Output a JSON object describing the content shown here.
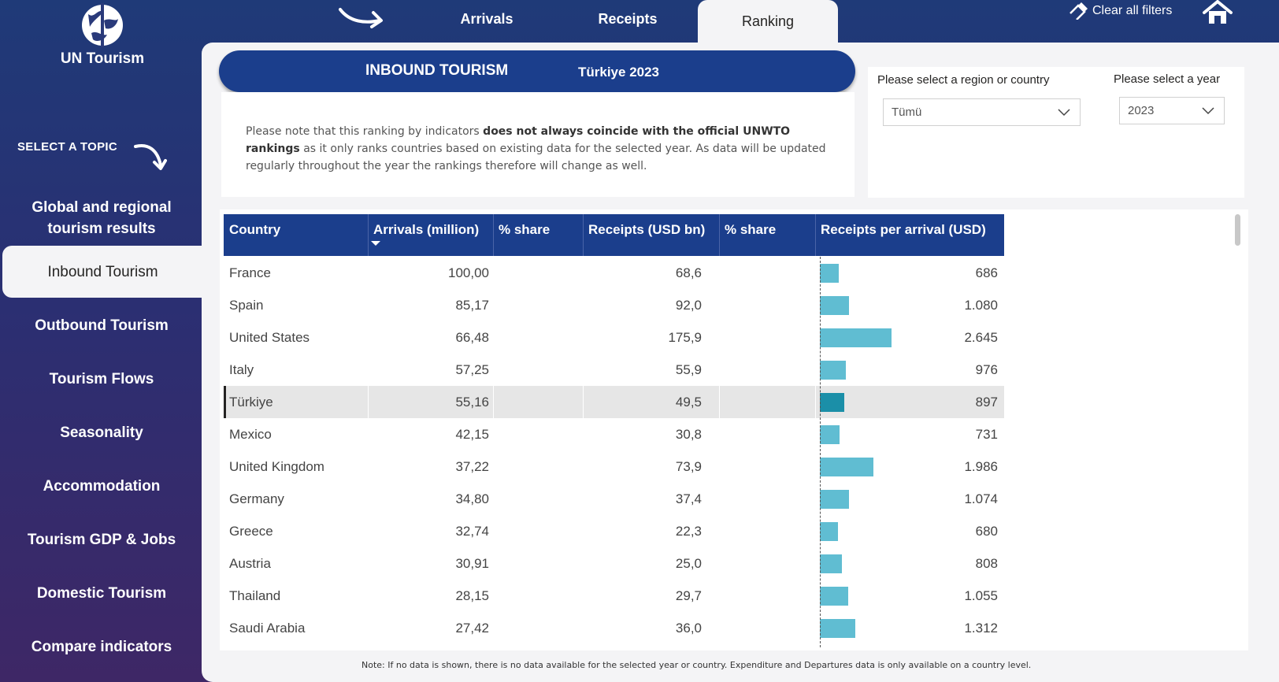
{
  "brand": {
    "name": "UN Tourism"
  },
  "nav": {
    "select_topic": "SELECT A TOPIC",
    "items": [
      {
        "label": "Global and regional tourism results",
        "line1": "Global and regional",
        "line2": "tourism results"
      },
      {
        "label": "Inbound Tourism"
      },
      {
        "label": "Outbound Tourism"
      },
      {
        "label": "Tourism Flows"
      },
      {
        "label": "Seasonality"
      },
      {
        "label": "Accommodation"
      },
      {
        "label": "Tourism GDP & Jobs"
      },
      {
        "label": "Domestic Tourism"
      },
      {
        "label": "Compare indicators"
      }
    ],
    "active": "Inbound Tourism"
  },
  "tabs": [
    {
      "label": "Arrivals"
    },
    {
      "label": "Receipts"
    },
    {
      "label": "Ranking"
    }
  ],
  "active_tab": "Ranking",
  "toolbar": {
    "clear_filters": "Clear all filters"
  },
  "banner": {
    "title": "INBOUND TOURISM",
    "context": "Türkiye 2023"
  },
  "note": {
    "part1": "Please note that this ranking by indicators ",
    "bold1": "does not always coincide with the official UNWTO rankings",
    "part2": " as it only ranks countries based on existing data for the selected year. As data will be updated regularly throughout the year the rankings therefore will change as well."
  },
  "filters": {
    "region_label": "Please select a region or country",
    "region_value": "Tümü",
    "year_label": "Please select a year",
    "year_value": "2023"
  },
  "table": {
    "columns": [
      "Country",
      "Arrivals (million)",
      "% share",
      "Receipts (USD bn)",
      "% share",
      "Receipts per arrival (USD)"
    ],
    "highlighted": "Türkiye",
    "rows": [
      {
        "country": "France",
        "arrivals": "100,00",
        "receipts": "68,6",
        "per_arrival": "686",
        "per_arrival_value": 686
      },
      {
        "country": "Spain",
        "arrivals": "85,17",
        "receipts": "92,0",
        "per_arrival": "1.080",
        "per_arrival_value": 1080
      },
      {
        "country": "United States",
        "arrivals": "66,48",
        "receipts": "175,9",
        "per_arrival": "2.645",
        "per_arrival_value": 2645
      },
      {
        "country": "Italy",
        "arrivals": "57,25",
        "receipts": "55,9",
        "per_arrival": "976",
        "per_arrival_value": 976
      },
      {
        "country": "Türkiye",
        "arrivals": "55,16",
        "receipts": "49,5",
        "per_arrival": "897",
        "per_arrival_value": 897
      },
      {
        "country": "Mexico",
        "arrivals": "42,15",
        "receipts": "30,8",
        "per_arrival": "731",
        "per_arrival_value": 731
      },
      {
        "country": "United Kingdom",
        "arrivals": "37,22",
        "receipts": "73,9",
        "per_arrival": "1.986",
        "per_arrival_value": 1986
      },
      {
        "country": "Germany",
        "arrivals": "34,80",
        "receipts": "37,4",
        "per_arrival": "1.074",
        "per_arrival_value": 1074
      },
      {
        "country": "Greece",
        "arrivals": "32,74",
        "receipts": "22,3",
        "per_arrival": "680",
        "per_arrival_value": 680
      },
      {
        "country": "Austria",
        "arrivals": "30,91",
        "receipts": "25,0",
        "per_arrival": "808",
        "per_arrival_value": 808
      },
      {
        "country": "Thailand",
        "arrivals": "28,15",
        "receipts": "29,7",
        "per_arrival": "1.055",
        "per_arrival_value": 1055
      },
      {
        "country": "Saudi Arabia",
        "arrivals": "27,42",
        "receipts": "36,0",
        "per_arrival": "1.312",
        "per_arrival_value": 1312
      }
    ]
  },
  "footer": {
    "note": "Note: If no data is shown, there is no data available for the selected year or country. Expenditure and Departures data is only available on a country level."
  },
  "colors": {
    "navy": "#1b3e8c",
    "bar": "#60bdd2",
    "bar_selected": "#1b8fa8"
  }
}
